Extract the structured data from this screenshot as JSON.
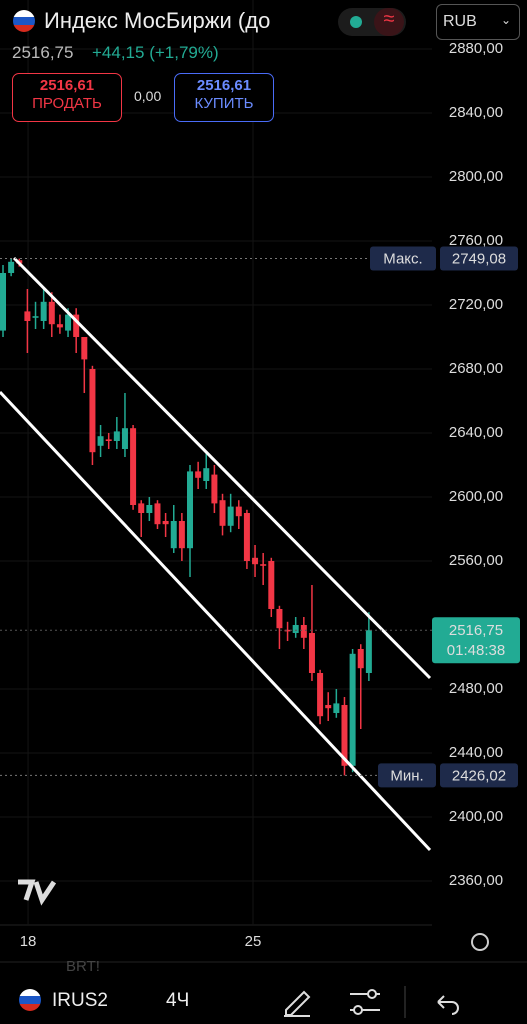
{
  "header": {
    "title": "Индекс МосБиржи (до",
    "price": "2516,75",
    "change": "+44,15 (+1,79%)",
    "sell_price": "2516,61",
    "sell_label": "ПРОДАТЬ",
    "spread": "0,00",
    "buy_price": "2516,61",
    "buy_label": "КУПИТЬ",
    "currency": "RUB"
  },
  "chart_data": {
    "type": "candlestick",
    "up_color": "#22ab94",
    "down_color": "#f23645",
    "grid": true,
    "xlim": [
      -0.37,
      64.45
    ],
    "xticks": [
      {
        "value": 3.08,
        "label": "18"
      },
      {
        "value": 30.75,
        "label": "25"
      }
    ],
    "ylim": [
      2332.5,
      2910.625
    ],
    "yticks": [
      {
        "value": 2880,
        "label": "2880,00"
      },
      {
        "value": 2840,
        "label": "2840,00"
      },
      {
        "value": 2800,
        "label": "2800,00"
      },
      {
        "value": 2760,
        "label": "2760,00"
      },
      {
        "value": 2720,
        "label": "2720,00"
      },
      {
        "value": 2680,
        "label": "2680,00"
      },
      {
        "value": 2640,
        "label": "2640,00"
      },
      {
        "value": 2600,
        "label": "2600,00"
      },
      {
        "value": 2560,
        "label": "2560,00"
      },
      {
        "value": 2480,
        "label": "2480,00"
      },
      {
        "value": 2440,
        "label": "2440,00"
      },
      {
        "value": 2400,
        "label": "2400,00"
      },
      {
        "value": 2360,
        "label": "2360,00"
      }
    ],
    "open": [
      2704,
      2740,
      2748,
      2716,
      2712,
      2710,
      2722,
      2708,
      2704,
      2714,
      2700,
      2680,
      2632,
      2636,
      2635,
      2630,
      2643,
      2596,
      2590,
      2596,
      2585,
      2568,
      2585,
      2568,
      2616,
      2610,
      2614,
      2598,
      2582,
      2594,
      2590,
      2562,
      2558,
      2560,
      2530,
      2517,
      2515,
      2520,
      2515,
      2490,
      2470,
      2465,
      2470,
      2432,
      2505,
      2490
    ],
    "high": [
      2745,
      2749,
      2749,
      2730,
      2722,
      2730,
      2728,
      2714,
      2718,
      2718,
      2700,
      2682,
      2645,
      2640,
      2650,
      2665,
      2645,
      2598,
      2600,
      2598,
      2590,
      2595,
      2590,
      2620,
      2622,
      2628,
      2620,
      2602,
      2602,
      2598,
      2592,
      2570,
      2565,
      2562,
      2532,
      2522,
      2525,
      2525,
      2545,
      2492,
      2478,
      2480,
      2475,
      2505,
      2508,
      2528
    ],
    "low": [
      2700,
      2738,
      2744,
      2690,
      2705,
      2705,
      2700,
      2702,
      2700,
      2690,
      2665,
      2620,
      2625,
      2630,
      2630,
      2625,
      2592,
      2575,
      2585,
      2580,
      2575,
      2565,
      2560,
      2550,
      2605,
      2605,
      2590,
      2576,
      2578,
      2580,
      2555,
      2550,
      2545,
      2525,
      2505,
      2510,
      2512,
      2505,
      2485,
      2458,
      2460,
      2462,
      2426,
      2428,
      2455,
      2485
    ],
    "close": [
      2740,
      2747,
      2746,
      2710,
      2713,
      2722,
      2708,
      2706,
      2714,
      2700,
      2686,
      2628,
      2638,
      2635,
      2641,
      2643,
      2595,
      2590,
      2595,
      2583,
      2583,
      2585,
      2568,
      2616,
      2612,
      2618,
      2596,
      2582,
      2594,
      2588,
      2560,
      2558,
      2557,
      2530,
      2518,
      2516,
      2520,
      2512,
      2490,
      2463,
      2468,
      2471,
      2432,
      2502,
      2493,
      2516.75
    ],
    "max_label": "Макс.",
    "max_value": {
      "value": 2749.08,
      "label": "2749,08"
    },
    "min_label": "Мин.",
    "min_value": {
      "value": 2426.02,
      "label": "2426,02"
    },
    "last_value": {
      "value": 2516.75,
      "label": "2516,75"
    },
    "countdown": "01:48:38"
  },
  "footer": {
    "ghost": "BRT!",
    "symbol": "IRUS2",
    "interval": "4Ч"
  }
}
